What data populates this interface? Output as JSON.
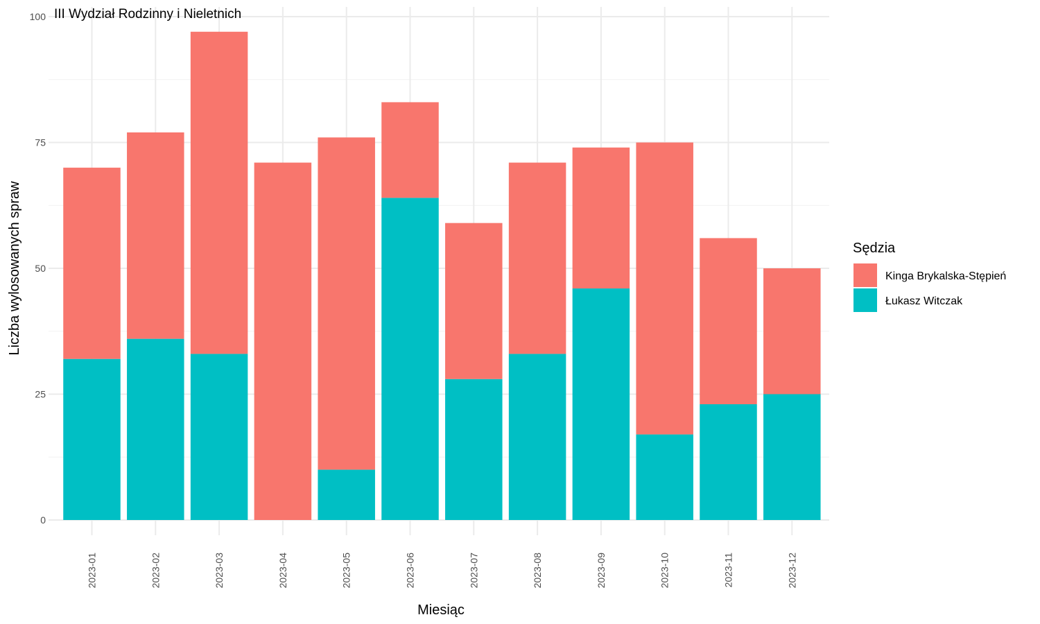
{
  "chart_data": {
    "type": "bar",
    "stacked": true,
    "title": "III Wydział Rodzinny i Nieletnich",
    "xlabel": "Miesiąc",
    "ylabel": "Liczba wylosowanych spraw",
    "ylim": [
      0,
      100
    ],
    "yticks": [
      0,
      25,
      50,
      75,
      100
    ],
    "grid": true,
    "legend_position": "right",
    "legend_title": "Sędzia",
    "categories": [
      "2023-01",
      "2023-02",
      "2023-03",
      "2023-04",
      "2023-05",
      "2023-06",
      "2023-07",
      "2023-08",
      "2023-09",
      "2023-10",
      "2023-11",
      "2023-12"
    ],
    "series": [
      {
        "name": "Łukasz Witczak",
        "color": "#00BFC4",
        "values": [
          32,
          36,
          33,
          0,
          10,
          64,
          28,
          33,
          46,
          17,
          23,
          25
        ]
      },
      {
        "name": "Kinga Brykalska-Stępień",
        "color": "#F8766D",
        "values": [
          38,
          41,
          64,
          71,
          66,
          19,
          31,
          38,
          28,
          58,
          33,
          25
        ]
      }
    ],
    "legend_order": [
      "Kinga Brykalska-Stępień",
      "Łukasz Witczak"
    ]
  }
}
